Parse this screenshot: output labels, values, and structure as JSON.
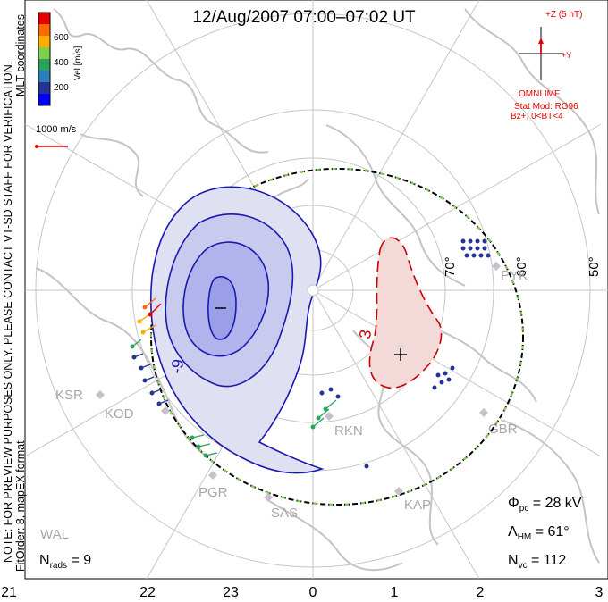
{
  "title": "12/Aug/2007 07:00–07:02 UT",
  "side_notes": {
    "preview": "NOTE: FOR PREVIEW PURPOSES ONLY. PLEASE CONTACT VT-SD STAFF FOR VERIFICATION.",
    "fit": "FitOrder: 8, mapEX format",
    "coords": "MLT coordinates"
  },
  "colorbar": {
    "label": "Vel [m/s]",
    "ticks": [
      "600",
      "400",
      "200"
    ],
    "colors": [
      "#e60000",
      "#ff6a00",
      "#ffae00",
      "#7fd04b",
      "#2ca25f",
      "#2c7fb8",
      "#253494",
      "#0000ff"
    ]
  },
  "vector_scale": "1000 m/s",
  "imf": {
    "z_label": "+Z (5 nT)",
    "y_label": "+Y",
    "source": "OMNI IMF",
    "model": "Stat Mod: RG96",
    "condition": "Bz+, 0<BT<4"
  },
  "contour_labels": {
    "negative": "-9",
    "positive": "3"
  },
  "latitude_labels": [
    "70°",
    "60°",
    "50°"
  ],
  "sites": [
    "KSR",
    "KOD",
    "PGR",
    "SAS",
    "RKN",
    "KAP",
    "GBR",
    "PYK",
    "WAL"
  ],
  "stats": {
    "phi_symbol": "Φ",
    "phi_sub": "pc",
    "phi_value": " = 28 kV",
    "lambda_symbol": "Λ",
    "lambda_sub": "HM",
    "lambda_value": " = 61°",
    "nvc_symbol": "N",
    "nvc_sub": "vc",
    "nvc_value": " = 112",
    "nrads_symbol": "N",
    "nrads_sub": "rads",
    "nrads_value": " = 9"
  },
  "mlt_labels": [
    "21",
    "22",
    "23",
    "0",
    "1",
    "2",
    "3"
  ],
  "colors": {
    "negative_fill": "#dfe0f1",
    "negative_line": "#1a1ab0",
    "positive_fill": "#f3d9d8",
    "positive_line": "#cc0000",
    "grid": "#c6c6c6",
    "coast": "#c4c4c4",
    "hmb_green": "#7fd04b"
  }
}
